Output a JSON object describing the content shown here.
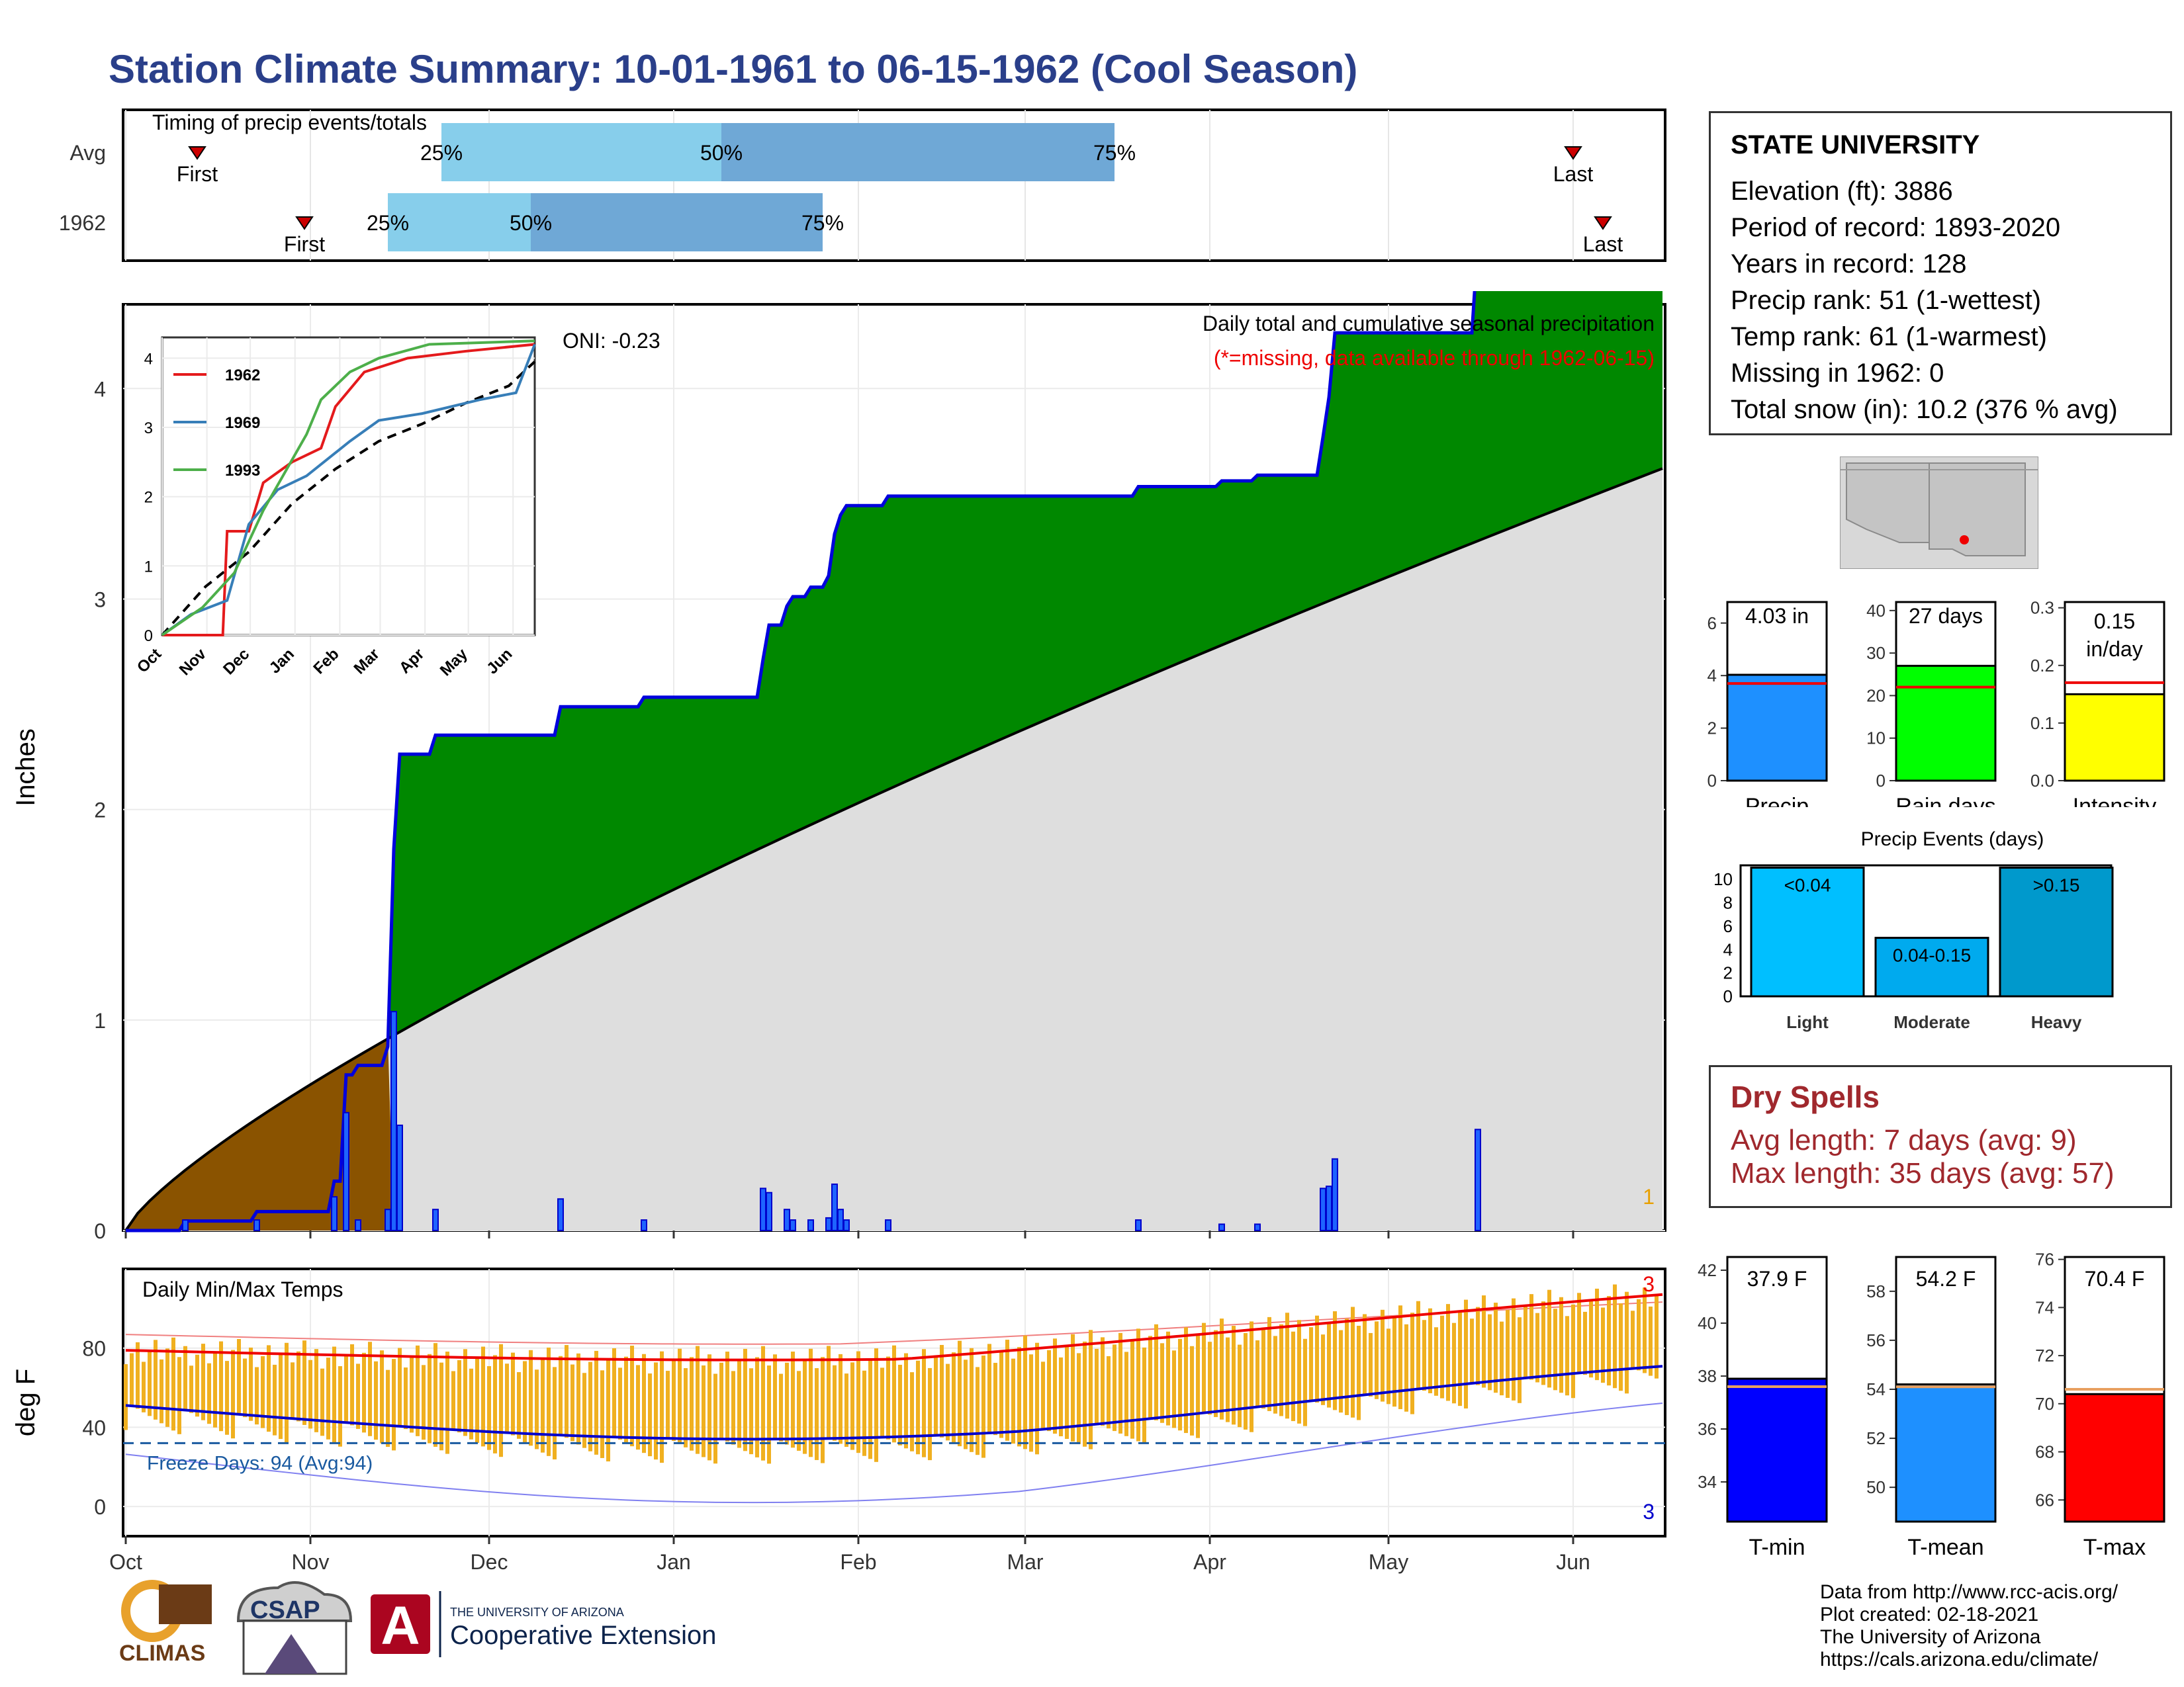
{
  "title": "Station Climate Summary: 10-01-1961 to 06-15-1962 (Cool Season)",
  "colors": {
    "title": "#2a3f8a",
    "precip_fill": "#008800",
    "precip_line": "#0000dd",
    "normal_fill": "#dedede",
    "early_fill": "#8a5300",
    "temp_bar": "#f0b020",
    "tmax_avg": "#ee0000",
    "tmin_avg": "#0000cc",
    "dry_text": "#a0282d"
  },
  "timing": {
    "title": "Timing of precip events/totals",
    "rows": [
      {
        "label": "Avg",
        "first_label": "First",
        "last_label": "Last",
        "first": "1961-10-13",
        "p25": "1961-11-23",
        "p50": "1962-01-09",
        "p75": "1962-03-16",
        "last": "1962-06-01"
      },
      {
        "label": "1962",
        "first_label": "First",
        "last_label": "Last",
        "first": "1961-10-31",
        "p25": "1961-11-14",
        "p50": "1961-12-08",
        "p75": "1962-01-26",
        "last": "1962-06-06"
      }
    ],
    "pct_labels": [
      "25%",
      "50%",
      "75%"
    ]
  },
  "station": {
    "name": "STATE UNIVERSITY",
    "lines": [
      "Elevation (ft): 3886",
      "Period of record: 1893-2020",
      "Years in record: 128",
      "Precip rank: 51 (1-wettest)",
      "Temp rank: 61 (1-warmest)",
      "Missing in 1962: 0",
      "Total snow (in): 10.2 (376 % avg)"
    ]
  },
  "precip_chart": {
    "ylabel": "Inches",
    "title": "Daily total and cumulative seasonal precipitation",
    "subtitle": "(*=missing, data available through 1962-06-15)",
    "oni": "ONI: -0.23",
    "corner_count": "1",
    "ylim": [
      0,
      4.4
    ],
    "yticks": [
      "0",
      "1",
      "2",
      "3",
      "4"
    ],
    "xticks": [
      "Oct",
      "Nov",
      "Dec",
      "Jan",
      "Feb",
      "Mar",
      "Apr",
      "May",
      "Jun"
    ],
    "daily": [
      [
        10,
        0.05
      ],
      [
        22,
        0.05
      ],
      [
        35,
        0.16
      ],
      [
        37,
        0.56
      ],
      [
        39,
        0.05
      ],
      [
        44,
        0.1
      ],
      [
        45,
        1.04
      ],
      [
        46,
        0.5
      ],
      [
        52,
        0.1
      ],
      [
        73,
        0.15
      ],
      [
        87,
        0.05
      ],
      [
        107,
        0.2
      ],
      [
        108,
        0.18
      ],
      [
        111,
        0.1
      ],
      [
        112,
        0.05
      ],
      [
        115,
        0.05
      ],
      [
        118,
        0.06
      ],
      [
        119,
        0.22
      ],
      [
        120,
        0.1
      ],
      [
        121,
        0.05
      ],
      [
        128,
        0.05
      ],
      [
        170,
        0.05
      ],
      [
        184,
        0.03
      ],
      [
        190,
        0.03
      ],
      [
        201,
        0.2
      ],
      [
        202,
        0.21
      ],
      [
        203,
        0.34
      ],
      [
        227,
        0.48
      ],
      [
        297,
        0.02
      ],
      [
        329,
        0.03
      ],
      [
        364,
        0.08
      ],
      [
        365,
        0.06
      ],
      [
        418,
        0.05
      ]
    ],
    "normal_end": 3.62,
    "cumulative_end": 4.03
  },
  "inset_chart": {
    "xticks": [
      "Oct",
      "Nov",
      "Dec",
      "Jan",
      "Feb",
      "Mar",
      "Apr",
      "May",
      "Jun"
    ],
    "yticks": [
      "0",
      "1",
      "2",
      "3",
      "4"
    ],
    "series": [
      {
        "name": "1962",
        "color": "#e41a1c",
        "pts": [
          [
            0,
            0
          ],
          [
            42,
            0
          ],
          [
            45,
            1.5
          ],
          [
            60,
            1.5
          ],
          [
            70,
            2.2
          ],
          [
            90,
            2.5
          ],
          [
            110,
            2.7
          ],
          [
            120,
            3.3
          ],
          [
            140,
            3.8
          ],
          [
            170,
            4.0
          ],
          [
            210,
            4.1
          ],
          [
            258,
            4.2
          ]
        ]
      },
      {
        "name": "1969",
        "color": "#377eb8",
        "pts": [
          [
            0,
            0
          ],
          [
            20,
            0.3
          ],
          [
            45,
            0.5
          ],
          [
            60,
            1.6
          ],
          [
            80,
            2.1
          ],
          [
            100,
            2.3
          ],
          [
            130,
            2.8
          ],
          [
            150,
            3.1
          ],
          [
            180,
            3.2
          ],
          [
            220,
            3.4
          ],
          [
            245,
            3.5
          ],
          [
            258,
            4.2
          ]
        ]
      },
      {
        "name": "1993",
        "color": "#4daf4a",
        "pts": [
          [
            0,
            0
          ],
          [
            28,
            0.4
          ],
          [
            50,
            0.9
          ],
          [
            70,
            1.8
          ],
          [
            100,
            2.9
          ],
          [
            110,
            3.4
          ],
          [
            130,
            3.8
          ],
          [
            150,
            4.0
          ],
          [
            185,
            4.2
          ],
          [
            258,
            4.25
          ]
        ]
      }
    ],
    "avg_pts": [
      [
        0,
        0
      ],
      [
        30,
        0.7
      ],
      [
        60,
        1.2
      ],
      [
        90,
        1.9
      ],
      [
        120,
        2.4
      ],
      [
        150,
        2.8
      ],
      [
        180,
        3.05
      ],
      [
        210,
        3.35
      ],
      [
        240,
        3.6
      ],
      [
        258,
        3.95
      ]
    ]
  },
  "gauges_precip": [
    {
      "label": "Precip",
      "value_text": "4.03 in",
      "value": 4.03,
      "avg": 3.7,
      "ymax": 6.8,
      "ticks": [
        "0",
        "2",
        "4",
        "6"
      ],
      "color": "#1e90ff"
    },
    {
      "label": "Rain days",
      "value_text": "27 days",
      "value": 27,
      "avg": 22,
      "ymax": 42,
      "ticks": [
        "0",
        "10",
        "20",
        "30",
        "40"
      ],
      "color": "#00ff00"
    },
    {
      "label": "Intensity",
      "value_text": "0.15 in/day",
      "value": 0.15,
      "avg": 0.17,
      "ymax": 0.31,
      "ticks": [
        "0.0",
        "0.1",
        "0.2",
        "0.3"
      ],
      "color": "#ffff00"
    }
  ],
  "events": {
    "title": "Precip Events (days)",
    "ticks": [
      "0",
      "2",
      "4",
      "6",
      "8",
      "10"
    ],
    "bars": [
      {
        "cat": "Light",
        "label": "<0.04",
        "value": 11,
        "color": "#00bfff"
      },
      {
        "cat": "Moderate",
        "label": "0.04-0.15",
        "value": 5,
        "color": "#00aaee"
      },
      {
        "cat": "Heavy",
        "label": ">0.15",
        "value": 11,
        "color": "#0099cc"
      }
    ]
  },
  "dry": {
    "title": "Dry Spells",
    "avg": "Avg length: 7 days (avg: 9)",
    "max": "Max length: 35 days (avg: 57)"
  },
  "temp_chart": {
    "title": "Daily Min/Max Temps",
    "ylabel": "deg F",
    "freeze": "Freeze Days: 94 (Avg:94)",
    "max_count": "3",
    "min_count": "3",
    "yticks": [
      "0",
      "40",
      "80"
    ],
    "xticks": [
      "Oct",
      "Nov",
      "Dec",
      "Jan",
      "Feb",
      "Mar",
      "Apr",
      "May",
      "Jun"
    ],
    "ylim": [
      -15,
      120
    ]
  },
  "gauges_temp": [
    {
      "label": "T-min",
      "value_text": "37.9 F",
      "value": 37.9,
      "avg": 37.6,
      "ymin": 32.5,
      "ymax": 42.5,
      "ticks": [
        "34",
        "36",
        "38",
        "40",
        "42"
      ],
      "color": "#0000ff"
    },
    {
      "label": "T-mean",
      "value_text": "54.2 F",
      "value": 54.2,
      "avg": 54.1,
      "ymin": 48.6,
      "ymax": 59.4,
      "ticks": [
        "50",
        "52",
        "54",
        "56",
        "58"
      ],
      "color": "#1e90ff"
    },
    {
      "label": "T-max",
      "value_text": "70.4 F",
      "value": 70.4,
      "avg": 70.6,
      "ymin": 65.1,
      "ymax": 76.1,
      "ticks": [
        "66",
        "68",
        "70",
        "72",
        "74",
        "76"
      ],
      "color": "#ff0000"
    }
  ],
  "credits": [
    "Data from http://www.rcc-acis.org/",
    "Plot created: 02-18-2021",
    "The University of Arizona",
    "https://cals.arizona.edu/climate/"
  ],
  "logos": {
    "climas": "CLIMAS",
    "csap": "CSAP",
    "ua_top": "THE UNIVERSITY OF ARIZONA",
    "ua_bottom": "Cooperative Extension"
  }
}
